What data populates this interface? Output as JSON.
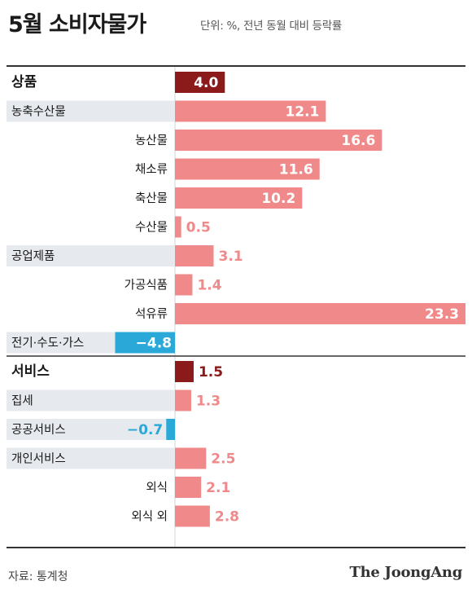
{
  "title": "5월 소비자물가",
  "unit": "단위: %, 전년 동월 대비 등락률",
  "source": "자료: 통계청",
  "publisher": "The JoongAng",
  "colors": {
    "group_bar": "#8b1a1a",
    "positive_bar": "#f08a8a",
    "negative_bar": "#2aa8d8",
    "label_band": "#e6e9ee",
    "value_on_light": "#f08a8a",
    "negative_text": "#2aa8d8",
    "group_value_text": "#8b1a1a"
  },
  "chart_data": {
    "type": "bar",
    "orientation": "horizontal",
    "title": "5월 소비자물가",
    "unit": "단위: %, 전년 동월 대비 등락률",
    "categories": [
      "상품",
      "농축수산물",
      "농산물",
      "채소류",
      "축산물",
      "수산물",
      "공업제품",
      "가공식품",
      "석유류",
      "전기·수도·가스",
      "서비스",
      "집세",
      "공공서비스",
      "개인서비스",
      "외식",
      "외식 외"
    ],
    "values": [
      4.0,
      12.1,
      16.6,
      11.6,
      10.2,
      0.5,
      3.1,
      1.4,
      23.3,
      -4.8,
      1.5,
      1.3,
      -0.7,
      2.5,
      2.1,
      2.8
    ],
    "value_labels": [
      "4.0",
      "12.1",
      "16.6",
      "11.6",
      "10.2",
      "0.5",
      "3.1",
      "1.4",
      "23.3",
      "−4.8",
      "1.5",
      "1.3",
      "−0.7",
      "2.5",
      "2.1",
      "2.8"
    ],
    "row_kind": [
      "group",
      "band",
      "sub",
      "sub",
      "sub",
      "sub",
      "band",
      "sub",
      "sub",
      "band",
      "group",
      "band",
      "band",
      "band",
      "sub",
      "sub"
    ],
    "xlim": [
      -5.5,
      23.3
    ]
  }
}
